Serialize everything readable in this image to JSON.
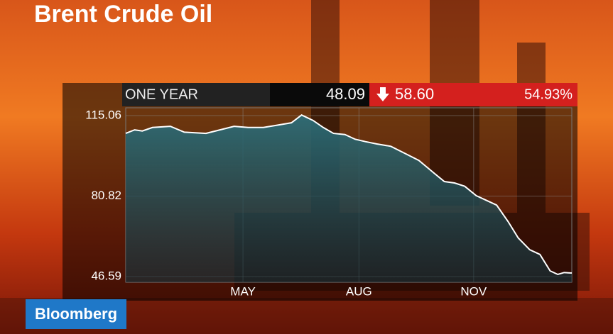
{
  "chart_data": {
    "type": "line",
    "title": "Brent Crude Oil",
    "brand": "Bloomberg",
    "period": "ONE YEAR",
    "last": "48.09",
    "change": "58.60",
    "change_pct": "54.93%",
    "series": [
      {
        "name": "Brent Crude Oil",
        "color": "#ffffff",
        "x": [
          0,
          7,
          13,
          21,
          35,
          46,
          63,
          74,
          85,
          96,
          108,
          119,
          130,
          138,
          147,
          155,
          163,
          172,
          180,
          188,
          197,
          208,
          219,
          230,
          241,
          250,
          258,
          266,
          275,
          283,
          291,
          300,
          308,
          317,
          325,
          333,
          339,
          344,
          350
        ],
        "values": [
          107.5,
          109,
          108.5,
          110,
          110.5,
          108,
          107.5,
          109,
          110.5,
          110,
          110,
          111,
          112,
          115.3,
          113,
          110,
          107.5,
          107,
          105,
          104,
          103,
          102,
          99,
          96,
          91,
          87,
          86.4,
          85,
          81,
          79,
          77,
          70,
          63,
          58,
          56,
          49,
          47.5,
          48.3,
          48.09
        ]
      }
    ],
    "xlim": [
      0,
      350
    ],
    "ylim": [
      44.18,
      118.38
    ],
    "xticks": [
      {
        "value": 92,
        "label": "MAY"
      },
      {
        "value": 183,
        "label": "AUG"
      },
      {
        "value": 273,
        "label": "NOV"
      }
    ],
    "yticks": [
      46.59,
      80.82,
      115.06
    ],
    "grid": true
  }
}
